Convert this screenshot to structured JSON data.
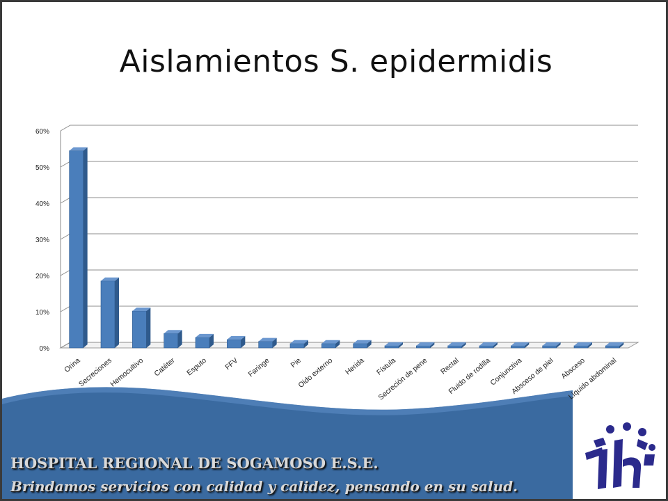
{
  "slide": {
    "title": "Aislamientos S. epidermidis",
    "footer": {
      "hospital_name": "HOSPITAL REGIONAL DE SOGAMOSO E.S.E.",
      "slogan": "Brindamos servicios con calidad y calidez, pensando en su salud."
    },
    "colors": {
      "bar": "#4a7ebb",
      "footer_band": "#3a6aa0",
      "logo": "#2b2a8c"
    },
    "logo_icon": "hospital-logo-icon"
  },
  "chart_data": {
    "type": "bar",
    "style": "3d-column",
    "title": "",
    "xlabel": "",
    "ylabel": "",
    "ylim": [
      0,
      60
    ],
    "y_ticks": [
      "0%",
      "10%",
      "20%",
      "30%",
      "40%",
      "50%",
      "60%"
    ],
    "grid": true,
    "legend": "none",
    "categories": [
      "Orina",
      "Secreciones",
      "Hemocultivo",
      "Catéter",
      "Esputo",
      "FFV",
      "Faringe",
      "Pie",
      "Oido externo",
      "Herida",
      "Fístula",
      "Secreción de pene",
      "Rectal",
      "Fluido de rodilla",
      "Conjunctiva",
      "Absceso de piel",
      "Absceso",
      "Líquido abdominal"
    ],
    "values": [
      54.5,
      18.5,
      10.2,
      4.0,
      2.9,
      2.3,
      1.8,
      1.2,
      1.2,
      1.2,
      0.6,
      0.6,
      0.6,
      0.6,
      0.6,
      0.6,
      0.6,
      0.6
    ]
  }
}
